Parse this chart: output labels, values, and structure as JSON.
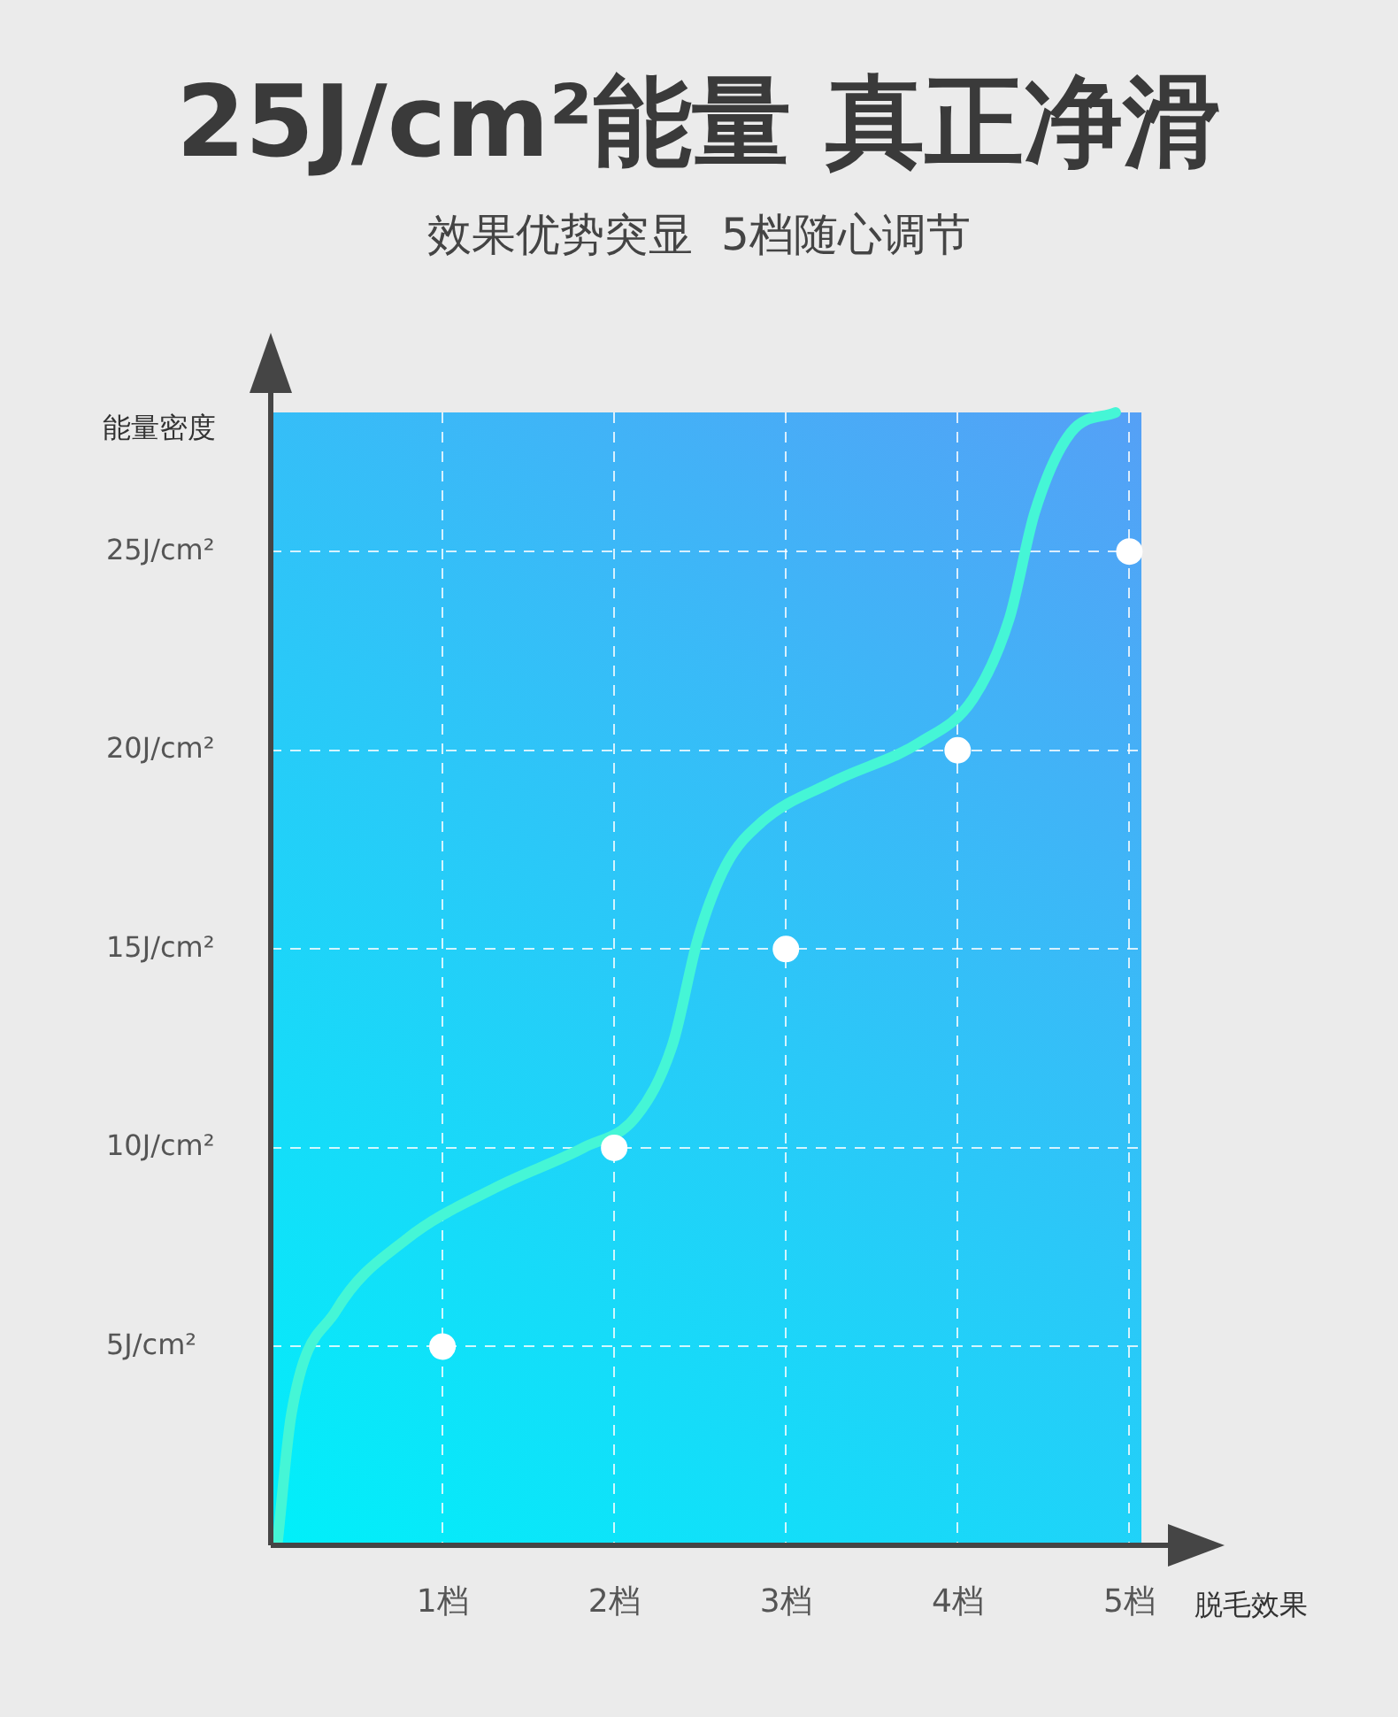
{
  "chart_data": {
    "type": "scatter",
    "title": "25J/cm²能量 真正净滑",
    "subtitle": "效果优势突显  5档随心调节",
    "xlabel": "脱毛效果",
    "ylabel": "能量密度",
    "x": [
      1,
      2,
      3,
      4,
      5
    ],
    "series": [
      {
        "type": "line",
        "color": "#45f6d6",
        "marker": "none",
        "x": [
          0.04,
          0.12,
          0.38,
          0.79,
          1.31,
          1.82,
          2.13,
          2.34,
          2.49,
          2.65,
          2.86,
          3.27,
          3.78,
          4.09,
          4.3,
          4.45,
          4.66,
          4.92
        ],
        "values": [
          0.1,
          3.3,
          5.9,
          7.7,
          9,
          10,
          10.8,
          12.6,
          15.3,
          17.1,
          18.2,
          19.2,
          20.2,
          21.3,
          23.3,
          26,
          28,
          28.5
        ]
      },
      {
        "color": "#ffffff",
        "values": [
          5,
          10,
          15,
          20,
          25
        ]
      }
    ],
    "xlim": [
      0,
      5.07
    ],
    "xticks": [
      {
        "value": 1,
        "label": "1档"
      },
      {
        "value": 2,
        "label": "2档"
      },
      {
        "value": 3,
        "label": "3档"
      },
      {
        "value": 4,
        "label": "4档"
      },
      {
        "value": 5,
        "label": "5档"
      }
    ],
    "ylim": [
      0,
      28.5
    ],
    "yticks": [
      {
        "value": 5,
        "label": "5J/cm²"
      },
      {
        "value": 10,
        "label": "10J/cm²"
      },
      {
        "value": 15,
        "label": "15J/cm²"
      },
      {
        "value": 20,
        "label": "20J/cm²"
      },
      {
        "value": 25,
        "label": "25J/cm²"
      }
    ],
    "grid": true,
    "marker": "circle"
  }
}
